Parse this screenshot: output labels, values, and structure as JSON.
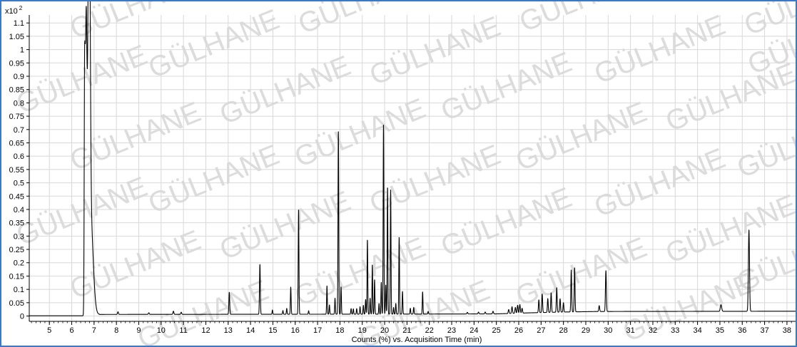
{
  "chart_data": {
    "type": "line",
    "scale_label": "x10",
    "scale_exponent": "2",
    "xlabel": "Counts (%) vs. Acquisition Time (min)",
    "xlim": [
      4.1,
      38.45
    ],
    "ylim": [
      -0.02,
      1.13
    ],
    "x_ticks": [
      5,
      6,
      7,
      8,
      9,
      10,
      11,
      12,
      13,
      14,
      15,
      16,
      17,
      18,
      19,
      20,
      21,
      22,
      23,
      24,
      25,
      26,
      27,
      28,
      29,
      30,
      31,
      32,
      33,
      34,
      35,
      36,
      37,
      38
    ],
    "y_ticks": [
      "0",
      "0.05",
      "0.1",
      "0.15",
      "0.2",
      "0.25",
      "0.3",
      "0.35",
      "0.4",
      "0.45",
      "0.5",
      "0.55",
      "0.6",
      "0.65",
      "0.7",
      "0.75",
      "0.8",
      "0.85",
      "0.9",
      "0.95",
      "1",
      "1.05",
      "1.1"
    ],
    "grid": true,
    "watermark": "GÜLHANE",
    "colors": {
      "border": "#3c78c8",
      "grid": "#d8d8d8",
      "line": "#000000",
      "watermark": "#dcdcdc"
    },
    "baseline": [
      [
        4.1,
        0.001
      ],
      [
        6.5,
        0.001
      ],
      [
        7.0,
        0.006
      ],
      [
        20.0,
        0.007
      ],
      [
        25.0,
        0.008
      ],
      [
        26.5,
        0.012
      ],
      [
        28.0,
        0.015
      ],
      [
        29.5,
        0.017
      ],
      [
        38.45,
        0.018
      ]
    ],
    "peaks": [
      {
        "rt": 6.58,
        "h": 0.995,
        "w": 0.02
      },
      {
        "rt": 6.66,
        "h": 0.93,
        "w": 0.03
      },
      {
        "rt": 6.75,
        "h": 0.925,
        "w": 0.025
      },
      {
        "rt": 6.79,
        "h": 0.715,
        "w": 0.018
      },
      {
        "rt": 6.85,
        "h": 0.35,
        "w": 0.05
      },
      {
        "rt": 8.07,
        "h": 0.01,
        "w": 0.02
      },
      {
        "rt": 9.45,
        "h": 0.006,
        "w": 0.02
      },
      {
        "rt": 10.55,
        "h": 0.012,
        "w": 0.02
      },
      {
        "rt": 10.9,
        "h": 0.008,
        "w": 0.02
      },
      {
        "rt": 13.05,
        "h": 0.083,
        "w": 0.018
      },
      {
        "rt": 14.42,
        "h": 0.187,
        "w": 0.018
      },
      {
        "rt": 14.98,
        "h": 0.016,
        "w": 0.015
      },
      {
        "rt": 15.45,
        "h": 0.014,
        "w": 0.015
      },
      {
        "rt": 15.62,
        "h": 0.022,
        "w": 0.015
      },
      {
        "rt": 15.8,
        "h": 0.102,
        "w": 0.016
      },
      {
        "rt": 16.15,
        "h": 0.394,
        "w": 0.016
      },
      {
        "rt": 16.6,
        "h": 0.013,
        "w": 0.015
      },
      {
        "rt": 17.42,
        "h": 0.106,
        "w": 0.015
      },
      {
        "rt": 17.53,
        "h": 0.035,
        "w": 0.015
      },
      {
        "rt": 17.78,
        "h": 0.06,
        "w": 0.015
      },
      {
        "rt": 17.93,
        "h": 0.69,
        "w": 0.016
      },
      {
        "rt": 18.05,
        "h": 0.103,
        "w": 0.015
      },
      {
        "rt": 18.5,
        "h": 0.021,
        "w": 0.015
      },
      {
        "rt": 18.6,
        "h": 0.02,
        "w": 0.015
      },
      {
        "rt": 18.75,
        "h": 0.021,
        "w": 0.015
      },
      {
        "rt": 18.9,
        "h": 0.028,
        "w": 0.015
      },
      {
        "rt": 19.05,
        "h": 0.033,
        "w": 0.015
      },
      {
        "rt": 19.15,
        "h": 0.055,
        "w": 0.015
      },
      {
        "rt": 19.23,
        "h": 0.28,
        "w": 0.015
      },
      {
        "rt": 19.35,
        "h": 0.06,
        "w": 0.015
      },
      {
        "rt": 19.45,
        "h": 0.186,
        "w": 0.015
      },
      {
        "rt": 19.55,
        "h": 0.13,
        "w": 0.015
      },
      {
        "rt": 19.75,
        "h": 0.04,
        "w": 0.015
      },
      {
        "rt": 19.85,
        "h": 0.12,
        "w": 0.015
      },
      {
        "rt": 19.95,
        "h": 0.715,
        "w": 0.016
      },
      {
        "rt": 20.05,
        "h": 0.11,
        "w": 0.015
      },
      {
        "rt": 20.13,
        "h": 0.478,
        "w": 0.015
      },
      {
        "rt": 20.27,
        "h": 0.47,
        "w": 0.015
      },
      {
        "rt": 20.4,
        "h": 0.025,
        "w": 0.015
      },
      {
        "rt": 20.5,
        "h": 0.04,
        "w": 0.015
      },
      {
        "rt": 20.65,
        "h": 0.29,
        "w": 0.015
      },
      {
        "rt": 20.8,
        "h": 0.085,
        "w": 0.015
      },
      {
        "rt": 21.15,
        "h": 0.022,
        "w": 0.015
      },
      {
        "rt": 21.3,
        "h": 0.025,
        "w": 0.015
      },
      {
        "rt": 21.7,
        "h": 0.083,
        "w": 0.015
      },
      {
        "rt": 21.95,
        "h": 0.01,
        "w": 0.015
      },
      {
        "rt": 23.7,
        "h": 0.006,
        "w": 0.02
      },
      {
        "rt": 24.2,
        "h": 0.007,
        "w": 0.02
      },
      {
        "rt": 24.5,
        "h": 0.007,
        "w": 0.02
      },
      {
        "rt": 24.85,
        "h": 0.01,
        "w": 0.02
      },
      {
        "rt": 25.55,
        "h": 0.015,
        "w": 0.02
      },
      {
        "rt": 25.7,
        "h": 0.025,
        "w": 0.02
      },
      {
        "rt": 25.85,
        "h": 0.022,
        "w": 0.02
      },
      {
        "rt": 25.95,
        "h": 0.03,
        "w": 0.02
      },
      {
        "rt": 26.05,
        "h": 0.032,
        "w": 0.02
      },
      {
        "rt": 26.15,
        "h": 0.018,
        "w": 0.02
      },
      {
        "rt": 26.9,
        "h": 0.048,
        "w": 0.018
      },
      {
        "rt": 27.05,
        "h": 0.07,
        "w": 0.018
      },
      {
        "rt": 27.3,
        "h": 0.052,
        "w": 0.018
      },
      {
        "rt": 27.45,
        "h": 0.073,
        "w": 0.018
      },
      {
        "rt": 27.7,
        "h": 0.092,
        "w": 0.018
      },
      {
        "rt": 27.85,
        "h": 0.05,
        "w": 0.018
      },
      {
        "rt": 28.0,
        "h": 0.035,
        "w": 0.018
      },
      {
        "rt": 28.35,
        "h": 0.158,
        "w": 0.018
      },
      {
        "rt": 28.5,
        "h": 0.165,
        "w": 0.018
      },
      {
        "rt": 29.6,
        "h": 0.022,
        "w": 0.02
      },
      {
        "rt": 29.9,
        "h": 0.153,
        "w": 0.02
      },
      {
        "rt": 35.05,
        "h": 0.025,
        "w": 0.03
      },
      {
        "rt": 36.3,
        "h": 0.305,
        "w": 0.025
      }
    ]
  }
}
